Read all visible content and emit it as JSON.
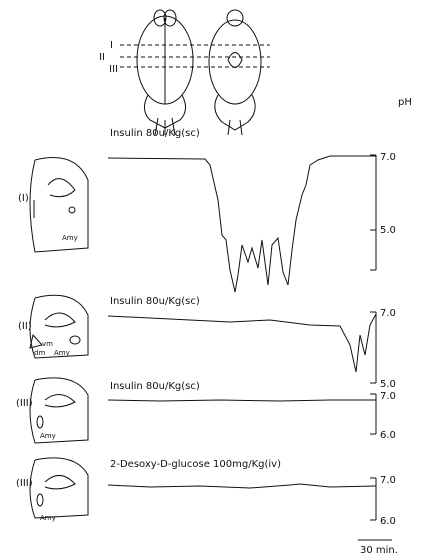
{
  "figure": {
    "levels": [
      "I",
      "II",
      "III"
    ],
    "unit": "pH",
    "panels": [
      {
        "label": "(I)",
        "region_labels": [
          "Amy"
        ],
        "treatment": "Insulin 80u/Kg(sc)",
        "ticks": [
          "7.0",
          "5.0"
        ]
      },
      {
        "label": "(II)",
        "region_labels": [
          "vm",
          "dm",
          "Amy"
        ],
        "treatment": "Insulin 80u/Kg(sc)",
        "ticks": [
          "7.0",
          "5.0"
        ]
      },
      {
        "label": "(III)",
        "region_labels": [
          "Amy"
        ],
        "treatment": "Insulin 80u/Kg(sc)",
        "ticks": [
          "7.0",
          "6.0"
        ]
      },
      {
        "label": "(III)",
        "region_labels": [
          "Amy"
        ],
        "treatment": "2-Desoxy-D-glucose 100mg/Kg(iv)",
        "ticks": [
          "7.0",
          "6.0"
        ]
      }
    ],
    "scale_bar": "30 min."
  }
}
